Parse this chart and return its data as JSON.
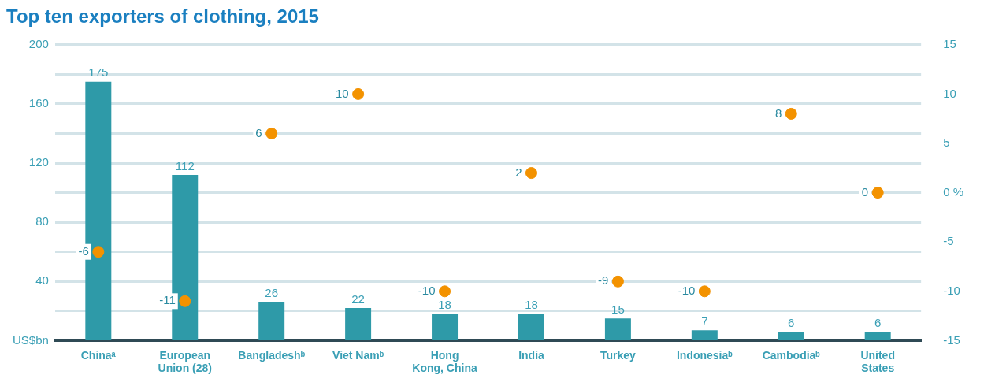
{
  "chart_data": {
    "type": "bar",
    "title": "Top ten exporters of clothing, 2015",
    "categories": [
      "Chinaᵃ",
      "European Union (28)",
      "Bangladeshᵇ",
      "Viet Namᵇ",
      "Hong Kong, China",
      "India",
      "Turkey",
      "Indonesiaᵇ",
      "Cambodiaᵇ",
      "United States"
    ],
    "series": [
      {
        "color": "#2e9aa8",
        "values": [
          175,
          112,
          26,
          22,
          18,
          18,
          15,
          7,
          6,
          6
        ]
      },
      {
        "type": "scatter",
        "axis": "y2",
        "color": "#f39200",
        "marker": "circle",
        "x": [
          "Chinaᵃ",
          "European Union (28)",
          "Bangladeshᵇ",
          "Viet Namᵇ",
          "Hong Kong, China",
          "India",
          "Turkey",
          "Indonesiaᵇ",
          "Cambodiaᵇ",
          "United States"
        ],
        "values": [
          -6,
          -11,
          6,
          10,
          -10,
          2,
          -9,
          -10,
          8,
          0
        ]
      }
    ],
    "ylim": [
      0,
      200
    ],
    "yticks": [
      {
        "value": 0,
        "label": "US$bn"
      },
      {
        "value": 20,
        "label": null
      },
      40,
      {
        "value": 60,
        "label": null
      },
      80,
      {
        "value": 100,
        "label": null
      },
      120,
      {
        "value": 140,
        "label": null
      },
      160,
      {
        "value": 180,
        "label": null
      },
      200
    ],
    "y2lim": [
      -15,
      15
    ],
    "y2ticks": [
      -15,
      -10,
      -5,
      {
        "value": 0,
        "label": "0 %"
      },
      5,
      10,
      15
    ],
    "grid": "y",
    "legend": false,
    "data_labels": true
  }
}
